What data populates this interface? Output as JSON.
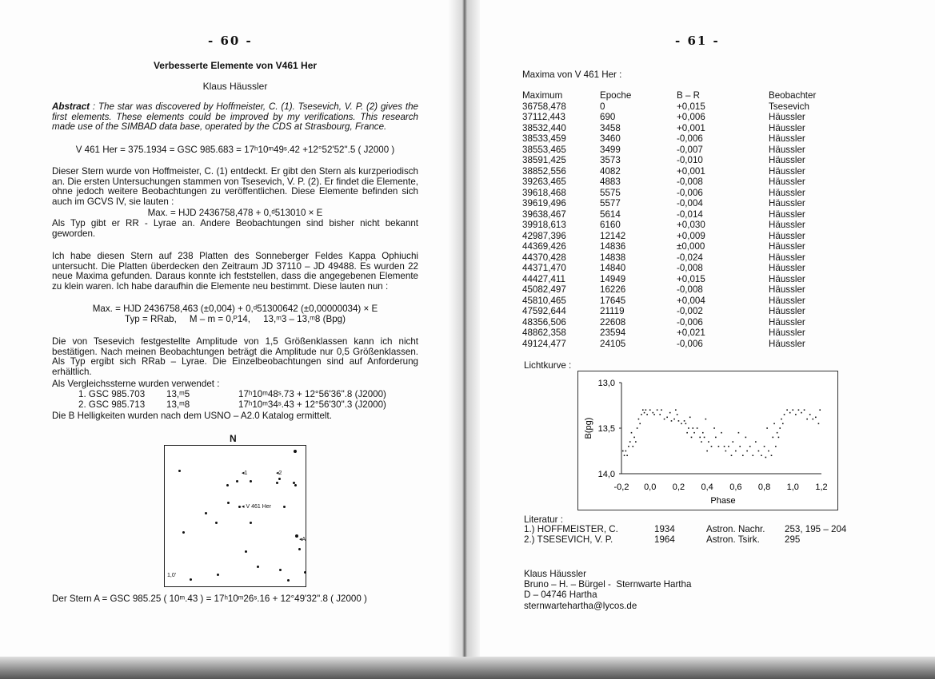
{
  "left_page": {
    "page_number": "- 60 -",
    "title": "Verbesserte Elemente von V461 Her",
    "author": "Klaus Häussler",
    "abstract_label": "Abstract",
    "abstract_text": " : The star was discovered by Hoffmeister, C. (1). Tsesevich, V. P. (2) gives the first elements. These elements could be improved by my verifications. This research made use of the SIMBAD data base, operated by the CDS at Strasbourg, France.",
    "identification": "V 461 Her = 375.1934 = GSC 985.683 = 17ʰ10ᵐ49ˢ.42  +12°52'52\".5 ( J2000 )",
    "para1": "Dieser Stern wurde von Hoffmeister, C. (1) entdeckt. Er gibt den Stern als kurzperiodisch an. Die ersten Untersuchungen stammen von Tsesevich, V. P. (2). Er findet die Elemente, ohne jedoch weitere Beobachtungen zu veröffentlichen. Diese Elemente befinden sich auch im GCVS IV, sie lauten :",
    "old_elements": "Max. = HJD 2436758,478 + 0,ᵈ513010 × E",
    "para2": "Als Typ gibt er RR - Lyrae an. Andere Beobachtungen sind bisher nicht bekannt geworden.",
    "para3": "Ich habe diesen Stern auf 238 Platten des Sonneberger Feldes Kappa Ophiuchi untersucht. Die Platten überdecken den Zeitraum JD 37110 – JD 49488. Es wurden 22 neue Maxima gefunden. Daraus konnte ich feststellen, dass die angegebenen Elemente zu klein waren. Ich habe daraufhin die Elemente neu bestimmt. Diese lauten nun :",
    "new_elements": "Max. = HJD 2436758,463 (±0,004) + 0,ᵈ51300642 (±0,00000034) × E",
    "type_line": "Typ = RRab,     M – m = 0,ᴾ14,     13,ᵐ3 – 13,ᵐ8 (Bpg)",
    "para4": "Die von Tsesevich festgestellte Amplitude von 1,5 Größenklassen kann ich nicht bestätigen. Nach meinen Beobachtungen beträgt die Amplitude nur 0,5 Größenklassen. Als Typ ergibt sich RRab – Lyrae. Die Einzelbeobachtungen sind auf Anforderung erhältlich.",
    "comparison_intro": "Als Vergleichssterne wurden verwendet :",
    "comparison_stars": [
      {
        "name": "1. GSC 985.703",
        "mag": "13,ᵐ5",
        "coords": "17ʰ10ᵐ48ˢ.73  + 12°56'36\".8  (J2000)"
      },
      {
        "name": "2. GSC 985.713",
        "mag": "13,ᵐ8",
        "coords": "17ʰ10ᵐ34ˢ.43  + 12°56'30\".3  (J2000)"
      }
    ],
    "usno_note": "Die B Helligkeiten wurden nach dem USNO – A2.0 Katalog ermittelt.",
    "map": {
      "north_label": "N",
      "labels": {
        "c1": "◂1",
        "c2": "◂2",
        "var": "◂ V 461 Her",
        "a": "◂A"
      },
      "scale": "1,0'"
    },
    "star_a": "Der Stern A = GSC 985.25   ( 10ᵐ.43 )  = 17ʰ10ᵐ26ˢ.16 + 12°49'32\".8 ( J2000 )"
  },
  "right_page": {
    "page_number": "- 61 -",
    "maxima_title": "Maxima von V 461 Her :",
    "table": {
      "headers": [
        "Maximum",
        "Epoche",
        "B – R",
        "Beobachter"
      ],
      "rows": [
        [
          "36758,478",
          "0",
          "+0,015",
          "Tsesevich"
        ],
        [
          "37112,443",
          "690",
          "+0,006",
          "Häussler"
        ],
        [
          "38532,440",
          "3458",
          "+0,001",
          "Häussler"
        ],
        [
          "38533,459",
          "3460",
          "-0,006",
          "Häussler"
        ],
        [
          "38553,465",
          "3499",
          "-0,007",
          "Häussler"
        ],
        [
          "38591,425",
          "3573",
          "-0,010",
          "Häussler"
        ],
        [
          "38852,556",
          "4082",
          "+0,001",
          "Häussler"
        ],
        [
          "39263,465",
          "4883",
          "-0,008",
          "Häussler"
        ],
        [
          "39618,468",
          "5575",
          "-0,006",
          "Häussler"
        ],
        [
          "39619,496",
          "5577",
          "-0,004",
          "Häussler"
        ],
        [
          "39638,467",
          "5614",
          "-0,014",
          "Häussler"
        ],
        [
          "39918,613",
          "6160",
          "+0,030",
          "Häussler"
        ],
        [
          "42987,396",
          "12142",
          "+0,009",
          "Häussler"
        ],
        [
          "44369,426",
          "14836",
          "±0,000",
          "Häussler"
        ],
        [
          "44370,428",
          "14838",
          "-0,024",
          "Häussler"
        ],
        [
          "44371,470",
          "14840",
          "-0,008",
          "Häussler"
        ],
        [
          "44427,411",
          "14949",
          "+0,015",
          "Häussler"
        ],
        [
          "45082,497",
          "16226",
          "-0,008",
          "Häussler"
        ],
        [
          "45810,465",
          "17645",
          "+0,004",
          "Häussler"
        ],
        [
          "47592,644",
          "21119",
          "-0,002",
          "Häussler"
        ],
        [
          "48356,506",
          "22608",
          "-0,006",
          "Häussler"
        ],
        [
          "48862,358",
          "23594",
          "+0,021",
          "Häussler"
        ],
        [
          "49124,477",
          "24105",
          "-0,006",
          "Häussler"
        ]
      ]
    },
    "lightcurve_label": "Lichtkurve :",
    "literature_title": "Literatur :",
    "literature": [
      {
        "author": "1.) HOFFMEISTER, C.",
        "year": "1934",
        "journal": "Astron. Nachr.",
        "ref": "253, 195 – 204"
      },
      {
        "author": "2.) TSESEVICH, V. P.",
        "year": "1964",
        "journal": "Astron. Tsirk.",
        "ref": "295"
      }
    ],
    "address": [
      "Klaus Häussler",
      "Bruno – H. – Bürgel -  Sternwarte Hartha",
      "D – 04746 Hartha",
      "sternwartehartha@lycos.de"
    ]
  },
  "chart_data": {
    "type": "scatter",
    "title": "",
    "xlabel": "Phase",
    "ylabel": "B(pg)",
    "xlim": [
      -0.2,
      1.2
    ],
    "ylim": [
      14.0,
      13.0
    ],
    "y_inverted": true,
    "x_ticks": [
      "-0,2",
      "0,0",
      "0,2",
      "0,4",
      "0,6",
      "0,8",
      "1,0",
      "1,2"
    ],
    "y_ticks": [
      "13,0",
      "13,5",
      "14,0"
    ],
    "grid": false,
    "points": [
      [
        -0.19,
        13.75
      ],
      [
        -0.18,
        13.8
      ],
      [
        -0.17,
        13.75
      ],
      [
        -0.16,
        13.8
      ],
      [
        -0.15,
        13.7
      ],
      [
        -0.14,
        13.65
      ],
      [
        -0.13,
        13.55
      ],
      [
        -0.12,
        13.7
      ],
      [
        -0.11,
        13.6
      ],
      [
        -0.1,
        13.65
      ],
      [
        -0.09,
        13.5
      ],
      [
        -0.08,
        13.4
      ],
      [
        -0.07,
        13.45
      ],
      [
        -0.06,
        13.35
      ],
      [
        -0.05,
        13.3
      ],
      [
        -0.04,
        13.33
      ],
      [
        -0.03,
        13.3
      ],
      [
        -0.02,
        13.35
      ],
      [
        0.0,
        13.3
      ],
      [
        0.02,
        13.33
      ],
      [
        0.03,
        13.35
      ],
      [
        0.05,
        13.3
      ],
      [
        0.07,
        13.35
      ],
      [
        0.08,
        13.3
      ],
      [
        0.1,
        13.4
      ],
      [
        0.12,
        13.38
      ],
      [
        0.14,
        13.33
      ],
      [
        0.15,
        13.42
      ],
      [
        0.17,
        13.4
      ],
      [
        0.18,
        13.3
      ],
      [
        0.19,
        13.35
      ],
      [
        0.2,
        13.42
      ],
      [
        0.22,
        13.45
      ],
      [
        0.24,
        13.42
      ],
      [
        0.25,
        13.45
      ],
      [
        0.26,
        13.55
      ],
      [
        0.27,
        13.5
      ],
      [
        0.28,
        13.38
      ],
      [
        0.29,
        13.6
      ],
      [
        0.3,
        13.5
      ],
      [
        0.31,
        13.55
      ],
      [
        0.33,
        13.5
      ],
      [
        0.35,
        13.6
      ],
      [
        0.36,
        13.65
      ],
      [
        0.37,
        13.55
      ],
      [
        0.38,
        13.6
      ],
      [
        0.39,
        13.4
      ],
      [
        0.4,
        13.75
      ],
      [
        0.41,
        13.65
      ],
      [
        0.43,
        13.7
      ],
      [
        0.45,
        13.5
      ],
      [
        0.46,
        13.6
      ],
      [
        0.48,
        13.7
      ],
      [
        0.5,
        13.55
      ],
      [
        0.52,
        13.7
      ],
      [
        0.53,
        13.75
      ],
      [
        0.55,
        13.7
      ],
      [
        0.57,
        13.8
      ],
      [
        0.58,
        13.65
      ],
      [
        0.6,
        13.75
      ],
      [
        0.62,
        13.55
      ],
      [
        0.63,
        13.7
      ],
      [
        0.65,
        13.8
      ],
      [
        0.67,
        13.6
      ],
      [
        0.68,
        13.75
      ],
      [
        0.7,
        13.7
      ],
      [
        0.72,
        13.8
      ],
      [
        0.74,
        13.65
      ],
      [
        0.76,
        13.75
      ],
      [
        0.78,
        13.8
      ],
      [
        0.8,
        13.7
      ],
      [
        0.81,
        13.82
      ],
      [
        0.82,
        13.5
      ],
      [
        0.83,
        13.75
      ],
      [
        0.85,
        13.8
      ],
      [
        0.86,
        13.6
      ],
      [
        0.87,
        13.45
      ],
      [
        0.88,
        13.7
      ],
      [
        0.89,
        13.55
      ],
      [
        0.9,
        13.6
      ],
      [
        0.91,
        13.5
      ],
      [
        0.92,
        13.4
      ],
      [
        0.93,
        13.45
      ],
      [
        0.94,
        13.35
      ],
      [
        0.96,
        13.3
      ],
      [
        0.98,
        13.33
      ],
      [
        1.0,
        13.3
      ],
      [
        1.02,
        13.35
      ],
      [
        1.04,
        13.3
      ],
      [
        1.06,
        13.33
      ],
      [
        1.08,
        13.3
      ],
      [
        1.1,
        13.4
      ],
      [
        1.12,
        13.35
      ],
      [
        1.14,
        13.4
      ],
      [
        1.16,
        13.38
      ],
      [
        1.18,
        13.45
      ],
      [
        1.19,
        13.3
      ]
    ]
  }
}
